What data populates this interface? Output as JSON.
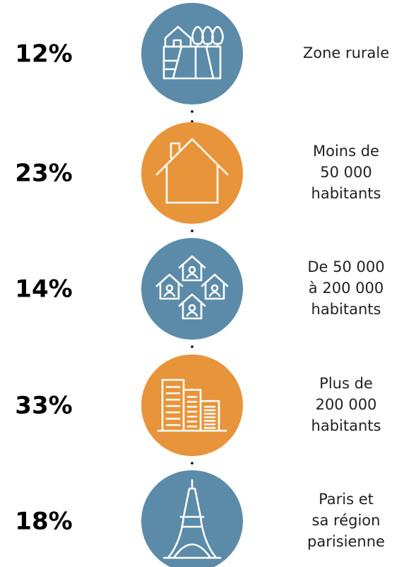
{
  "items": [
    {
      "percent": "12%",
      "label": [
        "Zone rurale"
      ]
    },
    {
      "percent": "23%",
      "label": [
        "Moins de",
        "50 000",
        "habitants"
      ]
    },
    {
      "percent": "14%",
      "label": [
        "De 50 000",
        "à 200 000",
        "habitants"
      ]
    },
    {
      "percent": "33%",
      "label": [
        "Plus de",
        "200 000",
        "habitants"
      ]
    },
    {
      "percent": "18%",
      "label": [
        "Paris et",
        "sa région",
        "parisienne"
      ]
    }
  ]
}
